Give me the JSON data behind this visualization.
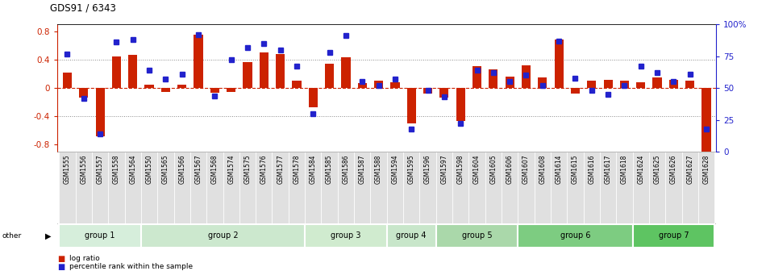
{
  "title": "GDS91 / 6343",
  "samples": [
    "GSM1555",
    "GSM1556",
    "GSM1557",
    "GSM1558",
    "GSM1564",
    "GSM1550",
    "GSM1565",
    "GSM1566",
    "GSM1567",
    "GSM1568",
    "GSM1574",
    "GSM1575",
    "GSM1576",
    "GSM1577",
    "GSM1578",
    "GSM1584",
    "GSM1585",
    "GSM1586",
    "GSM1587",
    "GSM1588",
    "GSM1594",
    "GSM1595",
    "GSM1596",
    "GSM1597",
    "GSM1598",
    "GSM1604",
    "GSM1605",
    "GSM1606",
    "GSM1607",
    "GSM1608",
    "GSM1614",
    "GSM1615",
    "GSM1616",
    "GSM1617",
    "GSM1618",
    "GSM1624",
    "GSM1625",
    "GSM1626",
    "GSM1627",
    "GSM1628"
  ],
  "log_ratio": [
    0.22,
    -0.14,
    -0.68,
    0.45,
    0.47,
    0.05,
    -0.05,
    0.05,
    0.76,
    -0.07,
    -0.06,
    0.37,
    0.5,
    0.48,
    0.1,
    -0.27,
    0.34,
    0.44,
    0.07,
    0.1,
    0.08,
    -0.5,
    -0.08,
    -0.14,
    -0.47,
    0.31,
    0.27,
    0.16,
    0.32,
    0.15,
    0.69,
    -0.08,
    0.1,
    0.12,
    0.1,
    0.08,
    0.15,
    0.12,
    0.1,
    -0.9
  ],
  "percentile": [
    77,
    42,
    14,
    86,
    88,
    64,
    57,
    61,
    92,
    44,
    72,
    82,
    85,
    80,
    67,
    30,
    78,
    91,
    55,
    52,
    57,
    18,
    48,
    43,
    22,
    64,
    62,
    55,
    60,
    52,
    87,
    58,
    48,
    45,
    52,
    67,
    62,
    55,
    61,
    18
  ],
  "groups": [
    {
      "label": "group 1",
      "start": 0,
      "end": 5,
      "color": "#d6eedb"
    },
    {
      "label": "group 2",
      "start": 5,
      "end": 15,
      "color": "#cce8ce"
    },
    {
      "label": "group 3",
      "start": 15,
      "end": 20,
      "color": "#d0ebcf"
    },
    {
      "label": "group 4",
      "start": 20,
      "end": 23,
      "color": "#c8e6ca"
    },
    {
      "label": "group 5",
      "start": 23,
      "end": 28,
      "color": "#aad8aa"
    },
    {
      "label": "group 6",
      "start": 28,
      "end": 35,
      "color": "#7dcc81"
    },
    {
      "label": "group 7",
      "start": 35,
      "end": 40,
      "color": "#5ec462"
    }
  ],
  "ylim": [
    -0.9,
    0.9
  ],
  "yticks": [
    -0.8,
    -0.4,
    0.0,
    0.4,
    0.8
  ],
  "ytick_labels": [
    "-0.8",
    "-0.4",
    "0",
    "0.4",
    "0.8"
  ],
  "right_ytick_pcts": [
    0,
    25,
    50,
    75,
    100
  ],
  "right_ytick_labels": [
    "0",
    "25",
    "50",
    "75",
    "100%"
  ],
  "bar_color": "#cc2200",
  "dot_color": "#2222cc",
  "hline_color": "#cc2200",
  "dotted_color": "#888888",
  "plot_bg": "#ffffff",
  "xlabel_bg": "#e0e0e0"
}
